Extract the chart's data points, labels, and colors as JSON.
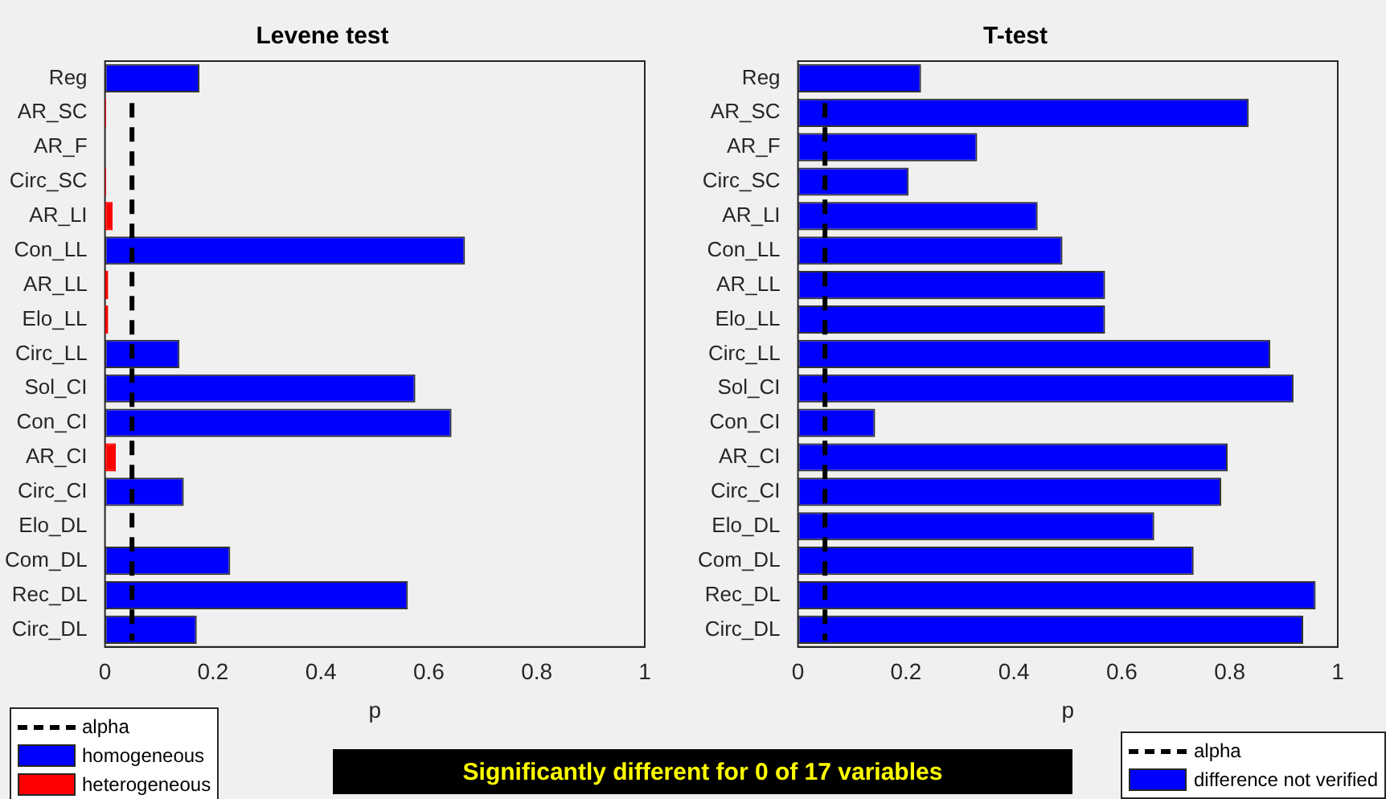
{
  "chart_data": [
    {
      "type": "bar",
      "orientation": "horizontal",
      "stacked": true,
      "title": "Levene test",
      "xlabel": "p",
      "categories": [
        "Reg",
        "AR_SC",
        "AR_F",
        "Circ_SC",
        "AR_LI",
        "Con_LL",
        "AR_LL",
        "Elo_LL",
        "Circ_LL",
        "Sol_CI",
        "Con_CI",
        "AR_CI",
        "Circ_CI",
        "Elo_DL",
        "Com_DL",
        "Rec_DL",
        "Circ_DL"
      ],
      "series": [
        {
          "name": "homogeneous",
          "color": "#0000ff",
          "values": [
            0.175,
            null,
            null,
            null,
            null,
            0.667,
            null,
            null,
            0.138,
            0.575,
            0.642,
            null,
            0.146,
            null,
            0.232,
            0.561,
            0.17
          ]
        },
        {
          "name": "heterogeneous",
          "color": "#ff0000",
          "values": [
            null,
            0.002,
            null,
            0.002,
            0.014,
            null,
            0.006,
            0.006,
            null,
            null,
            null,
            0.02,
            null,
            null,
            null,
            null,
            null
          ]
        }
      ],
      "xlim": [
        0,
        1
      ],
      "xticks": [
        0,
        0.2,
        0.4,
        0.6,
        0.8,
        1
      ],
      "ref_lines": [
        {
          "axis": "x",
          "value": 0.05,
          "label": "alpha",
          "color": "#000000",
          "line_style": "dashed"
        }
      ],
      "legend": "bottom left"
    },
    {
      "type": "bar",
      "orientation": "horizontal",
      "title": "T-test",
      "xlabel": "p",
      "categories": [
        "Reg",
        "AR_SC",
        "AR_F",
        "Circ_SC",
        "AR_LI",
        "Con_LL",
        "AR_LL",
        "Elo_LL",
        "Circ_LL",
        "Sol_CI",
        "Con_CI",
        "AR_CI",
        "Circ_CI",
        "Elo_DL",
        "Com_DL",
        "Rec_DL",
        "Circ_DL"
      ],
      "series": [
        {
          "name": "difference not verified",
          "color": "#0000ff",
          "values": [
            0.228,
            0.835,
            0.332,
            0.205,
            0.444,
            0.49,
            0.569,
            0.569,
            0.875,
            0.918,
            0.143,
            0.796,
            0.784,
            0.66,
            0.733,
            0.959,
            0.936
          ]
        }
      ],
      "xlim": [
        0,
        1
      ],
      "xticks": [
        0,
        0.2,
        0.4,
        0.6,
        0.8,
        1
      ],
      "ref_lines": [
        {
          "axis": "x",
          "value": 0.05,
          "label": "alpha",
          "color": "#000000",
          "line_style": "dashed"
        }
      ],
      "legend": "bottom right"
    },
    {
      "type": "other",
      "annotations": [
        "Significantly different for 0 of 17 variables"
      ]
    }
  ]
}
